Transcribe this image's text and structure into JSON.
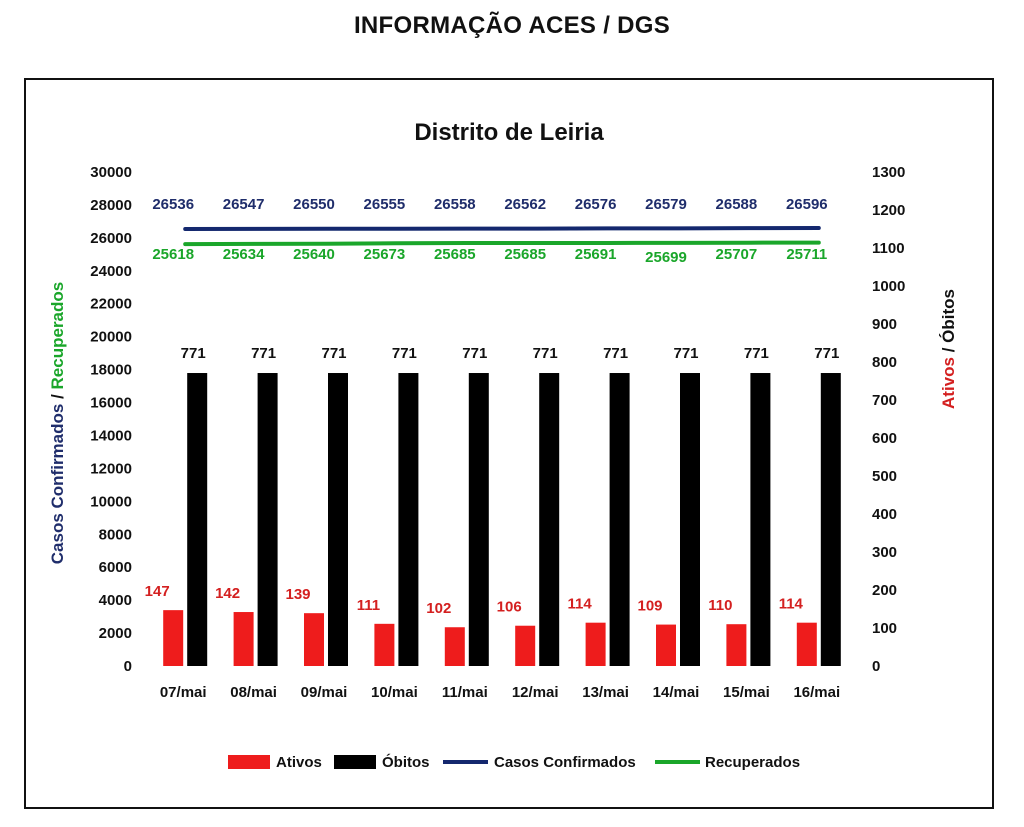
{
  "header": {
    "title": "INFORMAÇÃO ACES / DGS"
  },
  "colors": {
    "ativos": "#ee1c1c",
    "obitos": "#000000",
    "confirmados": "#14286e",
    "recuperados": "#1aa62a",
    "ativos_label": "#d42020",
    "recuperados_label": "#1aa62a",
    "confirmados_label": "#1f2d6b"
  },
  "chart_data": {
    "type": "bar",
    "title": "Distrito de Leiria",
    "categories": [
      "07/mai",
      "08/mai",
      "09/mai",
      "10/mai",
      "11/mai",
      "12/mai",
      "13/mai",
      "14/mai",
      "15/mai",
      "16/mai"
    ],
    "left_axis": {
      "label_parts": [
        "Casos Confirmados",
        " / ",
        "Recuperados"
      ],
      "ylim": [
        0,
        30000
      ],
      "ticks": [
        "0",
        "2000",
        "4000",
        "6000",
        "8000",
        "10000",
        "12000",
        "14000",
        "16000",
        "18000",
        "20000",
        "22000",
        "24000",
        "26000",
        "28000",
        "30000"
      ]
    },
    "right_axis": {
      "label_parts": [
        "Ativos",
        " / ",
        "Óbitos"
      ],
      "ylim": [
        0,
        1300
      ],
      "ticks": [
        "0",
        "100",
        "200",
        "300",
        "400",
        "500",
        "600",
        "700",
        "800",
        "900",
        "1000",
        "1100",
        "1200",
        "1300"
      ]
    },
    "series": [
      {
        "name": "Ativos",
        "type": "bar",
        "axis": "right",
        "values": [
          147,
          142,
          139,
          111,
          102,
          106,
          114,
          109,
          110,
          114
        ]
      },
      {
        "name": "Óbitos",
        "type": "bar",
        "axis": "right",
        "values": [
          771,
          771,
          771,
          771,
          771,
          771,
          771,
          771,
          771,
          771
        ]
      },
      {
        "name": "Casos Confirmados",
        "type": "line",
        "axis": "left",
        "values": [
          26536,
          26547,
          26550,
          26555,
          26558,
          26562,
          26576,
          26579,
          26588,
          26596
        ]
      },
      {
        "name": "Recuperados",
        "type": "line",
        "axis": "left",
        "values": [
          25618,
          25634,
          25640,
          25673,
          25685,
          25685,
          25691,
          25699,
          25707,
          25711
        ]
      }
    ],
    "legend": "bottom-center",
    "grid": false
  }
}
